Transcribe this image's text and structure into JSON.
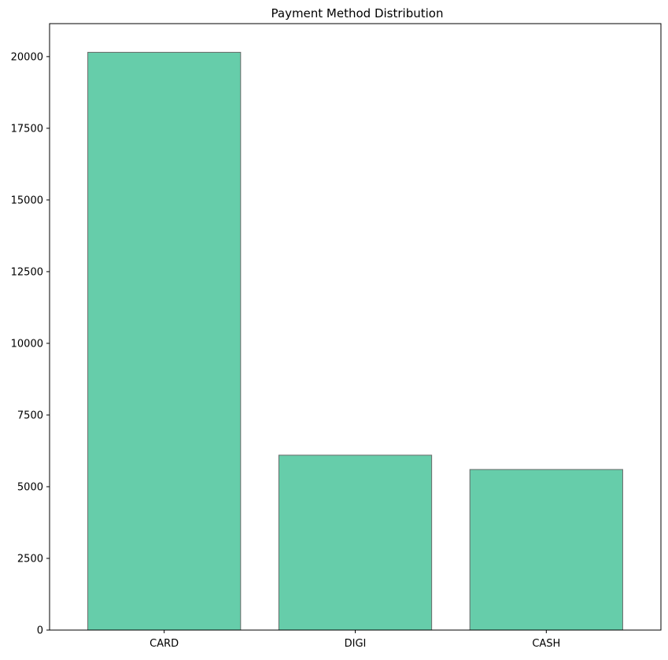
{
  "chart_data": {
    "type": "bar",
    "title": "Payment Method Distribution",
    "xlabel": "",
    "ylabel": "",
    "categories": [
      "CARD",
      "DIGI",
      "CASH"
    ],
    "values": [
      20150,
      6100,
      5600
    ],
    "ylim": [
      0,
      21150
    ],
    "yticks": [
      0,
      2500,
      5000,
      7500,
      10000,
      12500,
      15000,
      17500,
      20000
    ],
    "bar_color": "#66cdaa",
    "bar_edge_color": "#696969",
    "grid": false,
    "legend": "none"
  }
}
